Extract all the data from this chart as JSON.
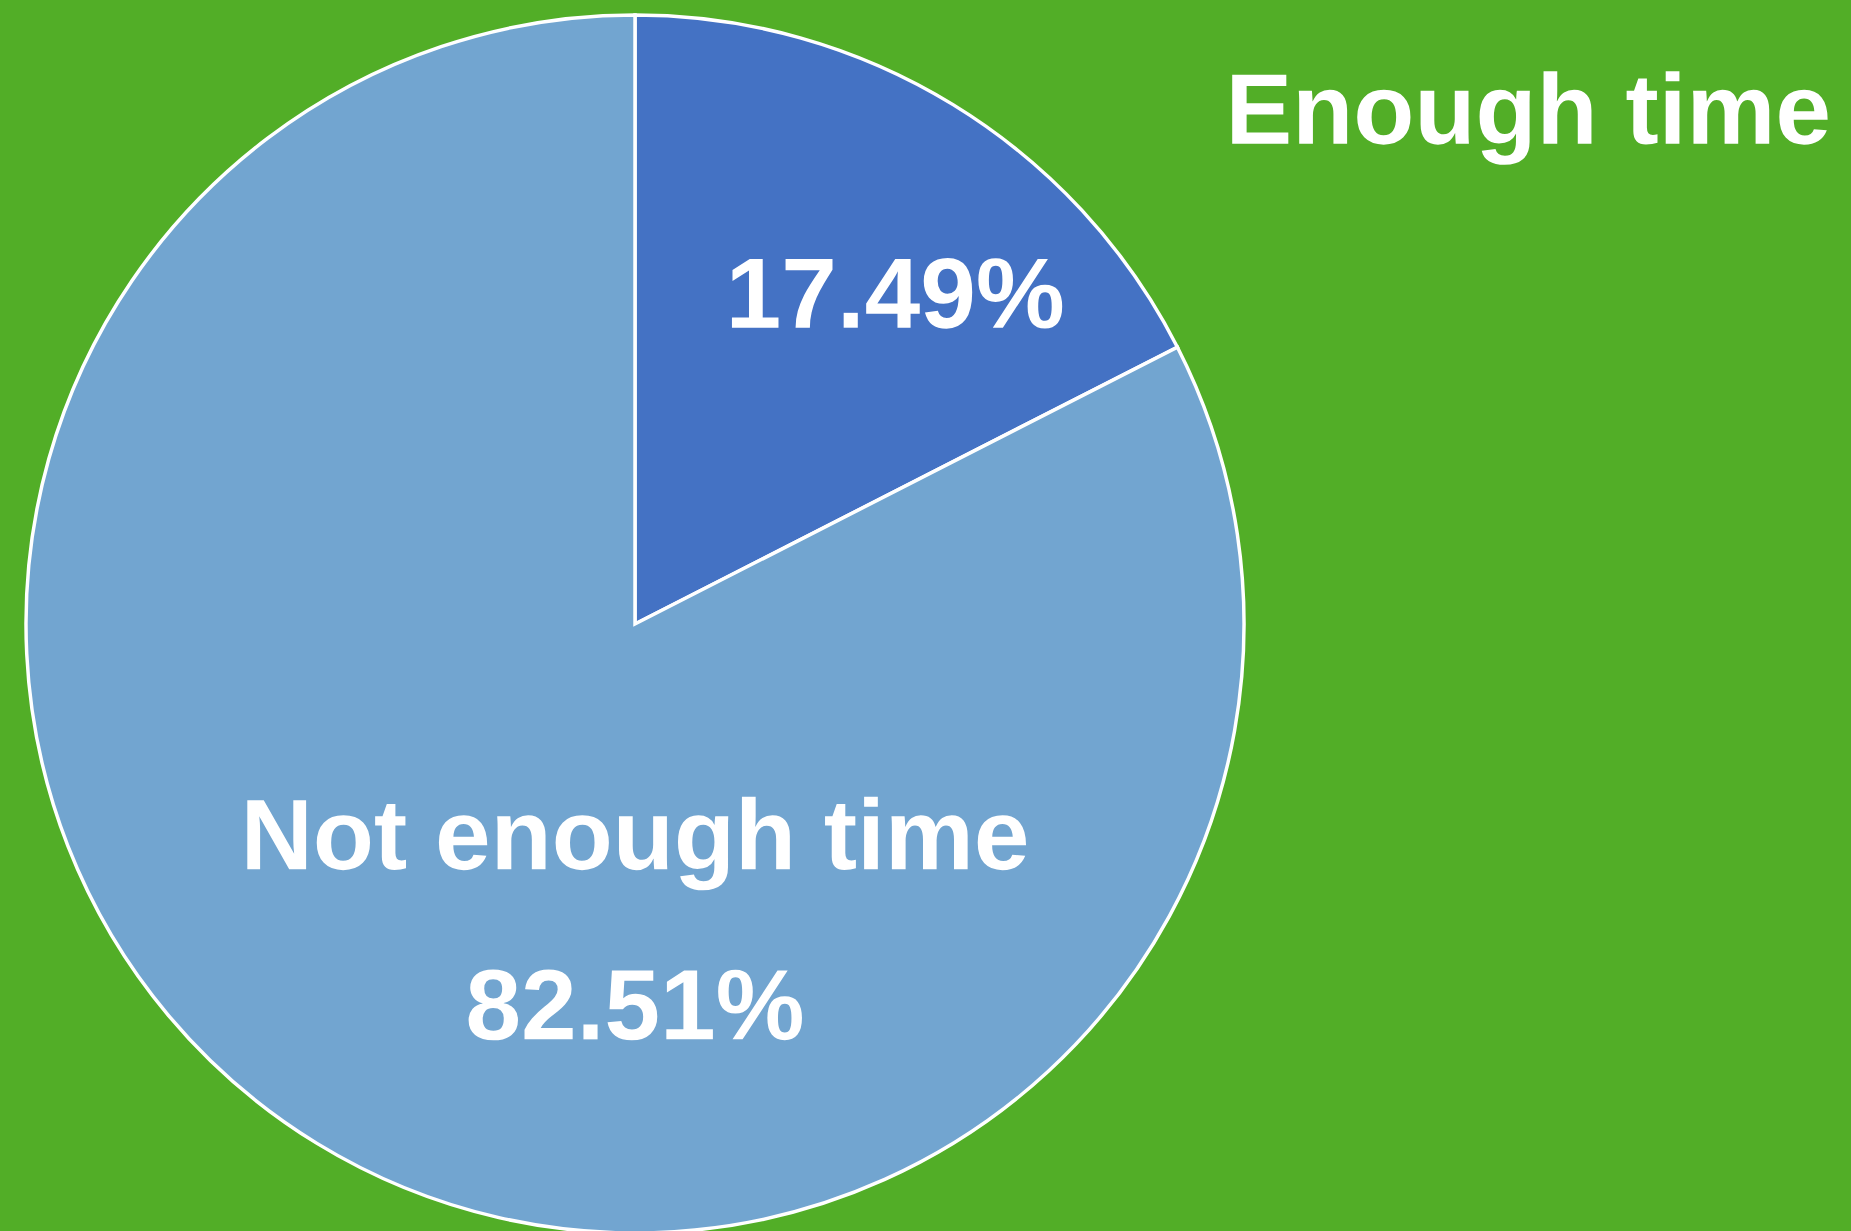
{
  "chart_data": {
    "type": "pie",
    "categories": [
      "Enough time",
      "Not enough time"
    ],
    "values": [
      17.49,
      82.51
    ],
    "colors": [
      "#4472c4",
      "#72a5d0"
    ],
    "value_labels": [
      "17.49%",
      "82.51%"
    ],
    "legend": false
  }
}
